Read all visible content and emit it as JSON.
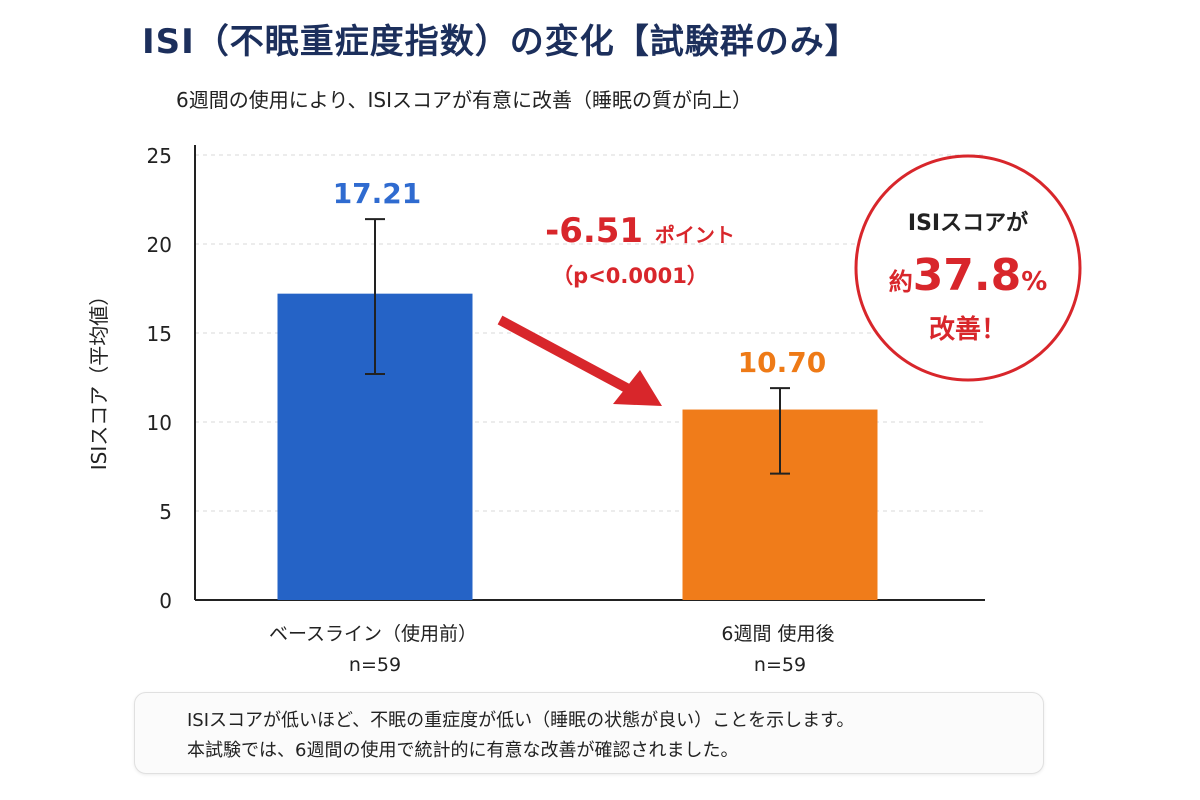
{
  "title": "ISI（不眠重症度指数）の変化【試験群のみ】",
  "subtitle": "6週間の使用により、ISIスコアが有意に改善（睡眠の質が向上）",
  "chart_data": {
    "type": "bar",
    "ylabel": "ISIスコア（平均値）",
    "ylim": [
      0,
      25
    ],
    "yticks": [
      "0",
      "5",
      "10",
      "15",
      "20",
      "25"
    ],
    "grid": true,
    "categories": [
      "ベースライン（使用前）",
      "6週間 使用後"
    ],
    "sample_sizes": [
      "n=59",
      "n=59"
    ],
    "values": [
      17.21,
      10.7
    ],
    "value_labels": [
      "17.21",
      "10.70"
    ],
    "error_bars": [
      {
        "low": 12.7,
        "high": 21.4
      },
      {
        "low": 7.1,
        "high": 11.9
      }
    ],
    "colors": [
      "#2563c6",
      "#f07c1a"
    ],
    "label_colors": [
      "#2f6bd0",
      "#ee7a16"
    ],
    "annotation": {
      "change_value": "-6.51",
      "change_unit": "ポイント",
      "p_value": "（p<0.0001）",
      "color": "#d8262b"
    },
    "callout": {
      "line1": "ISIスコアが",
      "prefix": "約",
      "percent": "37.8",
      "percent_sign": "%",
      "line3": "改善！",
      "color": "#d8262b"
    }
  },
  "note": {
    "line1": "ISIスコアが低いほど、不眠の重症度が低い（睡眠の状態が良い）ことを示します。",
    "line2": "本試験では、6週間の使用で統計的に有意な改善が確認されました。"
  }
}
